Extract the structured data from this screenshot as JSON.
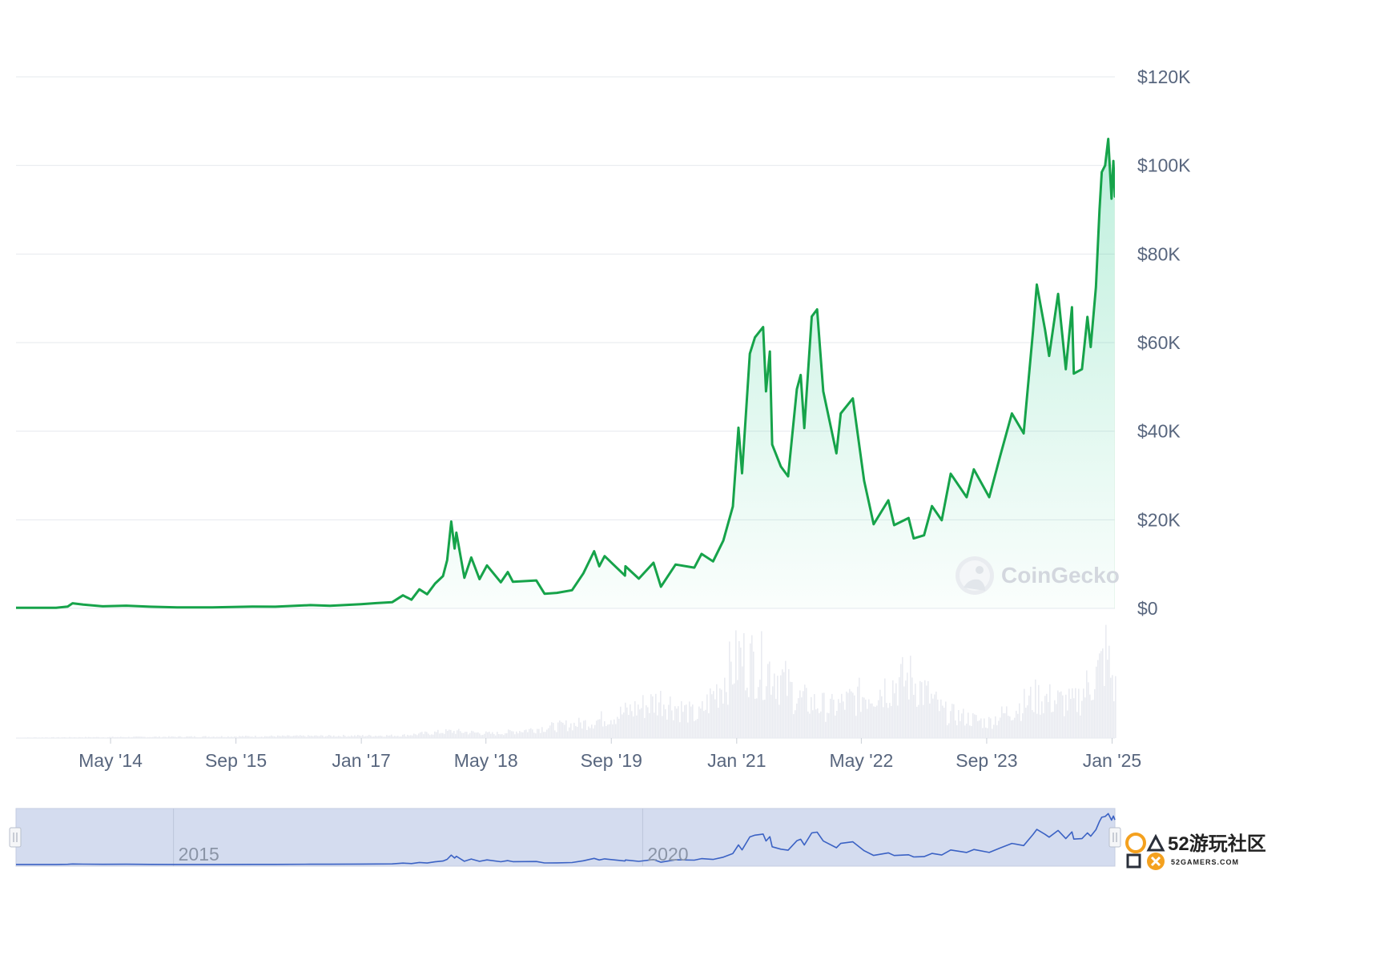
{
  "chart_data": {
    "type": "area",
    "x_range": [
      "2013-04-28",
      "2025-01-12"
    ],
    "ylim": [
      0,
      120000
    ],
    "grid": true,
    "y_ticks": [
      {
        "value": 0,
        "label": "$0"
      },
      {
        "value": 20000,
        "label": "$20K"
      },
      {
        "value": 40000,
        "label": "$40K"
      },
      {
        "value": 60000,
        "label": "$60K"
      },
      {
        "value": 80000,
        "label": "$80K"
      },
      {
        "value": 100000,
        "label": "$100K"
      },
      {
        "value": 120000,
        "label": "$120K"
      }
    ],
    "x_ticks": [
      {
        "date": "2014-05-01",
        "label": "May '14"
      },
      {
        "date": "2015-09-01",
        "label": "Sep '15"
      },
      {
        "date": "2017-01-01",
        "label": "Jan '17"
      },
      {
        "date": "2018-05-01",
        "label": "May '18"
      },
      {
        "date": "2019-09-01",
        "label": "Sep '19"
      },
      {
        "date": "2021-01-01",
        "label": "Jan '21"
      },
      {
        "date": "2022-05-01",
        "label": "May '22"
      },
      {
        "date": "2023-09-01",
        "label": "Sep '23"
      },
      {
        "date": "2025-01-01",
        "label": "Jan '25"
      }
    ],
    "series": [
      {
        "color": "#16a34a",
        "points": [
          [
            "2013-04-28",
            135
          ],
          [
            "2013-10-01",
            125
          ],
          [
            "2013-11-15",
            420
          ],
          [
            "2013-12-04",
            1150
          ],
          [
            "2014-01-15",
            850
          ],
          [
            "2014-04-01",
            470
          ],
          [
            "2014-07-01",
            620
          ],
          [
            "2014-10-01",
            380
          ],
          [
            "2015-01-15",
            210
          ],
          [
            "2015-06-01",
            230
          ],
          [
            "2015-11-04",
            400
          ],
          [
            "2016-02-01",
            380
          ],
          [
            "2016-06-17",
            740
          ],
          [
            "2016-09-01",
            600
          ],
          [
            "2016-12-31",
            960
          ],
          [
            "2017-03-01",
            1200
          ],
          [
            "2017-05-01",
            1400
          ],
          [
            "2017-06-12",
            2950
          ],
          [
            "2017-07-15",
            1950
          ],
          [
            "2017-08-15",
            4300
          ],
          [
            "2017-09-14",
            3200
          ],
          [
            "2017-10-15",
            5600
          ],
          [
            "2017-11-15",
            7300
          ],
          [
            "2017-12-01",
            10900
          ],
          [
            "2017-12-17",
            19600
          ],
          [
            "2017-12-30",
            13500
          ],
          [
            "2018-01-06",
            17100
          ],
          [
            "2018-02-06",
            6900
          ],
          [
            "2018-03-05",
            11500
          ],
          [
            "2018-04-06",
            6600
          ],
          [
            "2018-05-05",
            9700
          ],
          [
            "2018-06-28",
            5900
          ],
          [
            "2018-07-25",
            8200
          ],
          [
            "2018-08-14",
            6000
          ],
          [
            "2018-11-13",
            6300
          ],
          [
            "2018-12-15",
            3300
          ],
          [
            "2019-02-01",
            3500
          ],
          [
            "2019-04-01",
            4100
          ],
          [
            "2019-05-15",
            7900
          ],
          [
            "2019-06-26",
            12900
          ],
          [
            "2019-07-16",
            9500
          ],
          [
            "2019-08-06",
            11800
          ],
          [
            "2019-10-24",
            7400
          ],
          [
            "2019-10-26",
            9500
          ],
          [
            "2019-12-17",
            6700
          ],
          [
            "2020-02-12",
            10300
          ],
          [
            "2020-03-12",
            4900
          ],
          [
            "2020-05-08",
            9900
          ],
          [
            "2020-07-20",
            9200
          ],
          [
            "2020-08-17",
            12300
          ],
          [
            "2020-10-01",
            10600
          ],
          [
            "2020-11-10",
            15300
          ],
          [
            "2020-12-17",
            23000
          ],
          [
            "2021-01-08",
            40800
          ],
          [
            "2021-01-22",
            30500
          ],
          [
            "2021-02-21",
            57500
          ],
          [
            "2021-03-13",
            61200
          ],
          [
            "2021-04-14",
            63500
          ],
          [
            "2021-04-25",
            49000
          ],
          [
            "2021-05-10",
            58000
          ],
          [
            "2021-05-19",
            37000
          ],
          [
            "2021-06-22",
            32000
          ],
          [
            "2021-07-20",
            29800
          ],
          [
            "2021-08-23",
            49500
          ],
          [
            "2021-09-07",
            52700
          ],
          [
            "2021-09-21",
            40700
          ],
          [
            "2021-10-20",
            65900
          ],
          [
            "2021-11-10",
            67500
          ],
          [
            "2021-12-04",
            49000
          ],
          [
            "2022-01-24",
            35000
          ],
          [
            "2022-02-10",
            44000
          ],
          [
            "2022-03-29",
            47400
          ],
          [
            "2022-05-12",
            28800
          ],
          [
            "2022-06-18",
            19000
          ],
          [
            "2022-08-14",
            24400
          ],
          [
            "2022-09-06",
            18800
          ],
          [
            "2022-11-01",
            20400
          ],
          [
            "2022-11-21",
            15800
          ],
          [
            "2022-12-31",
            16500
          ],
          [
            "2023-01-31",
            23100
          ],
          [
            "2023-03-10",
            19900
          ],
          [
            "2023-04-14",
            30400
          ],
          [
            "2023-06-15",
            25100
          ],
          [
            "2023-07-13",
            31400
          ],
          [
            "2023-09-11",
            25100
          ],
          [
            "2023-10-24",
            34500
          ],
          [
            "2023-12-08",
            44000
          ],
          [
            "2024-01-23",
            39500
          ],
          [
            "2024-02-28",
            62500
          ],
          [
            "2024-03-14",
            73100
          ],
          [
            "2024-04-15",
            63000
          ],
          [
            "2024-05-01",
            57000
          ],
          [
            "2024-06-05",
            71000
          ],
          [
            "2024-07-05",
            54000
          ],
          [
            "2024-07-29",
            68000
          ],
          [
            "2024-08-05",
            53000
          ],
          [
            "2024-09-06",
            54000
          ],
          [
            "2024-09-27",
            65800
          ],
          [
            "2024-10-10",
            59000
          ],
          [
            "2024-10-30",
            72500
          ],
          [
            "2024-11-13",
            90000
          ],
          [
            "2024-11-22",
            98500
          ],
          [
            "2024-12-05",
            100000
          ],
          [
            "2024-12-17",
            106000
          ],
          [
            "2024-12-30",
            92500
          ],
          [
            "2025-01-06",
            101000
          ],
          [
            "2025-01-12",
            93000
          ]
        ]
      }
    ],
    "volume_series": {
      "points": [
        [
          "2013-04-28",
          0.5
        ],
        [
          "2017-06-01",
          3
        ],
        [
          "2017-12-15",
          8
        ],
        [
          "2018-06-01",
          5
        ],
        [
          "2019-06-01",
          18
        ],
        [
          "2019-10-01",
          28
        ],
        [
          "2020-03-12",
          45
        ],
        [
          "2020-08-01",
          25
        ],
        [
          "2021-01-10",
          95
        ],
        [
          "2021-05-19",
          80
        ],
        [
          "2021-09-01",
          45
        ],
        [
          "2022-01-01",
          35
        ],
        [
          "2022-06-15",
          55
        ],
        [
          "2022-11-10",
          70
        ],
        [
          "2023-03-15",
          30
        ],
        [
          "2023-09-01",
          18
        ],
        [
          "2024-03-10",
          48
        ],
        [
          "2024-08-05",
          40
        ],
        [
          "2024-11-13",
          80
        ],
        [
          "2024-12-05",
          100
        ],
        [
          "2025-01-12",
          55
        ]
      ]
    },
    "navigator": {
      "labels": [
        {
          "date": "2015-01-01",
          "label": "2015"
        },
        {
          "date": "2020-01-01",
          "label": "2020"
        }
      ]
    }
  },
  "watermark": {
    "text": "CoinGecko"
  },
  "corner_logo": {
    "text": "52游玩社区",
    "subtext": "52GAMERS.COM"
  }
}
